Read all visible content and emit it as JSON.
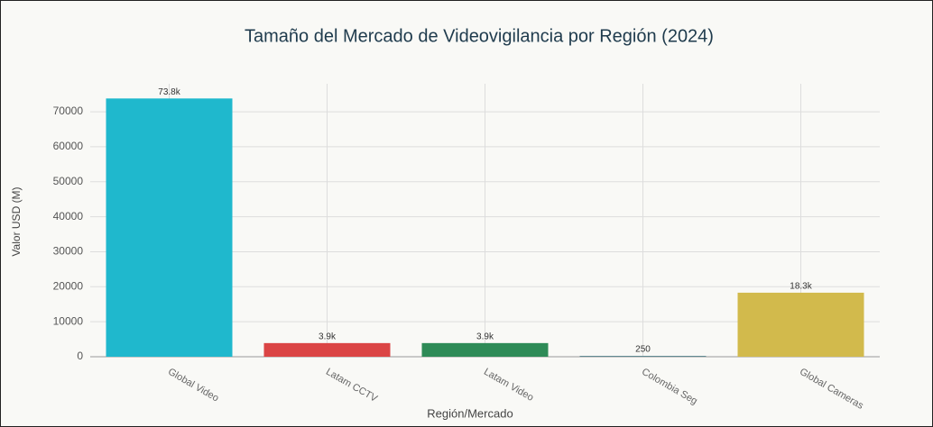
{
  "chart_data": {
    "type": "bar",
    "title": "Tamaño del Mercado de Videovigilancia por Región (2024)",
    "x_label": "Región/Mercado",
    "y_label": "Valor USD (M)",
    "categories": [
      "Global Video",
      "Latam CCTV",
      "Latam Video",
      "Colombia Seg",
      "Global Cameras"
    ],
    "values": [
      73800,
      3900,
      3900,
      250,
      18300
    ],
    "value_labels": [
      "73.8k",
      "3.9k",
      "3.9k",
      "250",
      "18.3k"
    ],
    "colors": [
      "#1fb8cd",
      "#db4545",
      "#2e8b57",
      "#5d878f",
      "#d2ba4c"
    ],
    "ylim": [
      0,
      78000
    ],
    "yticks": [
      0,
      10000,
      20000,
      30000,
      40000,
      50000,
      60000,
      70000
    ],
    "grid": true
  }
}
